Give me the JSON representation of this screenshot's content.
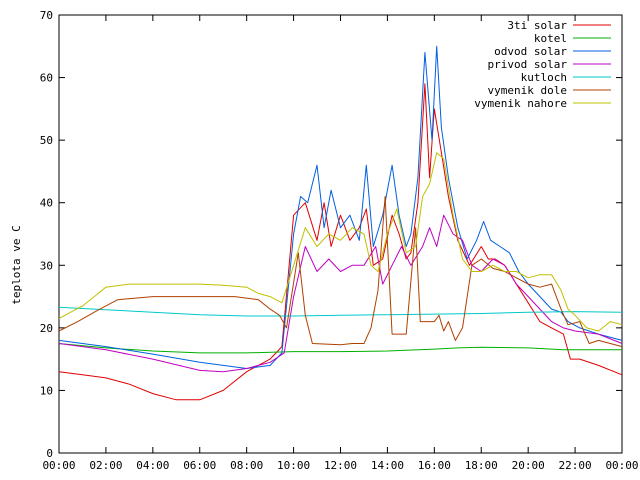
{
  "chart_data": {
    "type": "line",
    "title": "",
    "xlabel": "",
    "ylabel": "teplota ve C",
    "xlim": [
      0,
      24
    ],
    "ylim": [
      0,
      70
    ],
    "grid": false,
    "legend_position": "top-right",
    "x_ticks": [
      {
        "v": 0,
        "label": "00:00"
      },
      {
        "v": 2,
        "label": "02:00"
      },
      {
        "v": 4,
        "label": "04:00"
      },
      {
        "v": 6,
        "label": "06:00"
      },
      {
        "v": 8,
        "label": "08:00"
      },
      {
        "v": 10,
        "label": "10:00"
      },
      {
        "v": 12,
        "label": "12:00"
      },
      {
        "v": 14,
        "label": "14:00"
      },
      {
        "v": 16,
        "label": "16:00"
      },
      {
        "v": 18,
        "label": "18:00"
      },
      {
        "v": 20,
        "label": "20:00"
      },
      {
        "v": 22,
        "label": "22:00"
      },
      {
        "v": 24,
        "label": "00:00"
      }
    ],
    "y_ticks": [
      {
        "v": 0,
        "label": "0"
      },
      {
        "v": 10,
        "label": "10"
      },
      {
        "v": 20,
        "label": "20"
      },
      {
        "v": 30,
        "label": "30"
      },
      {
        "v": 40,
        "label": "40"
      },
      {
        "v": 50,
        "label": "50"
      },
      {
        "v": 60,
        "label": "60"
      },
      {
        "v": 70,
        "label": "70"
      }
    ],
    "series": [
      {
        "name": "3ti solar",
        "color": "#e00000",
        "points": [
          [
            0,
            13
          ],
          [
            1,
            12.5
          ],
          [
            2,
            12
          ],
          [
            3,
            11
          ],
          [
            4,
            9.5
          ],
          [
            5,
            8.5
          ],
          [
            6,
            8.5
          ],
          [
            7,
            10
          ],
          [
            8,
            13
          ],
          [
            9,
            15
          ],
          [
            9.5,
            17
          ],
          [
            10,
            38
          ],
          [
            10.5,
            40
          ],
          [
            11,
            34
          ],
          [
            11.3,
            40
          ],
          [
            11.6,
            33
          ],
          [
            12,
            38
          ],
          [
            12.4,
            34
          ],
          [
            12.8,
            36
          ],
          [
            13.1,
            39
          ],
          [
            13.4,
            30
          ],
          [
            13.8,
            31
          ],
          [
            14.2,
            38
          ],
          [
            14.5,
            35
          ],
          [
            14.8,
            31
          ],
          [
            15,
            32
          ],
          [
            15.3,
            40
          ],
          [
            15.6,
            59
          ],
          [
            15.8,
            44
          ],
          [
            16,
            55
          ],
          [
            16.3,
            48
          ],
          [
            16.6,
            41
          ],
          [
            17,
            34
          ],
          [
            17.5,
            30
          ],
          [
            18,
            33
          ],
          [
            18.3,
            31
          ],
          [
            18.6,
            31
          ],
          [
            19,
            30
          ],
          [
            19.5,
            27
          ],
          [
            20,
            24
          ],
          [
            20.5,
            21
          ],
          [
            21,
            20
          ],
          [
            21.5,
            19
          ],
          [
            21.8,
            15
          ],
          [
            22.2,
            15
          ],
          [
            23,
            14
          ],
          [
            24,
            12.5
          ]
        ]
      },
      {
        "name": "kotel",
        "color": "#00b000",
        "points": [
          [
            0,
            17.5
          ],
          [
            2,
            16.8
          ],
          [
            4,
            16.3
          ],
          [
            6,
            16
          ],
          [
            8,
            16
          ],
          [
            10,
            16.2
          ],
          [
            12,
            16.2
          ],
          [
            14,
            16.3
          ],
          [
            16,
            16.6
          ],
          [
            17,
            16.8
          ],
          [
            18,
            16.9
          ],
          [
            20,
            16.8
          ],
          [
            21.5,
            16.5
          ],
          [
            24,
            16.5
          ]
        ]
      },
      {
        "name": "odvod solar",
        "color": "#0060e0",
        "points": [
          [
            0,
            18
          ],
          [
            2,
            17
          ],
          [
            4,
            15.8
          ],
          [
            6,
            14.5
          ],
          [
            8,
            13.5
          ],
          [
            9,
            14
          ],
          [
            9.5,
            16
          ],
          [
            10,
            35
          ],
          [
            10.3,
            41
          ],
          [
            10.6,
            40
          ],
          [
            11,
            46
          ],
          [
            11.3,
            36
          ],
          [
            11.6,
            42
          ],
          [
            12,
            36
          ],
          [
            12.4,
            38
          ],
          [
            12.8,
            34
          ],
          [
            13.1,
            46
          ],
          [
            13.4,
            33
          ],
          [
            13.8,
            38
          ],
          [
            14.2,
            46
          ],
          [
            14.5,
            38
          ],
          [
            14.8,
            33
          ],
          [
            15,
            35
          ],
          [
            15.3,
            44
          ],
          [
            15.6,
            64
          ],
          [
            15.9,
            50
          ],
          [
            16.1,
            65
          ],
          [
            16.3,
            52
          ],
          [
            16.6,
            44
          ],
          [
            17,
            36
          ],
          [
            17.4,
            31
          ],
          [
            17.8,
            34
          ],
          [
            18.1,
            37
          ],
          [
            18.4,
            34
          ],
          [
            18.8,
            33
          ],
          [
            19.2,
            32
          ],
          [
            19.6,
            29
          ],
          [
            20,
            27
          ],
          [
            20.5,
            25
          ],
          [
            21,
            23
          ],
          [
            21.4,
            22.5
          ],
          [
            21.7,
            21
          ],
          [
            22.2,
            20
          ],
          [
            23,
            19
          ],
          [
            24,
            18
          ]
        ]
      },
      {
        "name": "privod solar",
        "color": "#c000c0",
        "points": [
          [
            0,
            17.5
          ],
          [
            2,
            16.5
          ],
          [
            4,
            15
          ],
          [
            6,
            13.2
          ],
          [
            7,
            13
          ],
          [
            8,
            13.5
          ],
          [
            9,
            14.5
          ],
          [
            9.6,
            16
          ],
          [
            10,
            25
          ],
          [
            10.5,
            33
          ],
          [
            11,
            29
          ],
          [
            11.5,
            31
          ],
          [
            12,
            29
          ],
          [
            12.5,
            30
          ],
          [
            13,
            30
          ],
          [
            13.5,
            33
          ],
          [
            13.8,
            27
          ],
          [
            14.2,
            30
          ],
          [
            14.6,
            33
          ],
          [
            15,
            30
          ],
          [
            15.5,
            33
          ],
          [
            15.8,
            36
          ],
          [
            16.1,
            33
          ],
          [
            16.4,
            38
          ],
          [
            16.8,
            35
          ],
          [
            17.2,
            34
          ],
          [
            17.6,
            30
          ],
          [
            18,
            29
          ],
          [
            18.5,
            31
          ],
          [
            19,
            30
          ],
          [
            19.5,
            27
          ],
          [
            20,
            25
          ],
          [
            20.5,
            23
          ],
          [
            21,
            21
          ],
          [
            21.5,
            20
          ],
          [
            22,
            19.5
          ],
          [
            23,
            19
          ],
          [
            24,
            17.5
          ]
        ]
      },
      {
        "name": "kutloch",
        "color": "#00c8c8",
        "points": [
          [
            0,
            23.3
          ],
          [
            2,
            22.9
          ],
          [
            4,
            22.5
          ],
          [
            6,
            22.1
          ],
          [
            8,
            21.9
          ],
          [
            10,
            21.9
          ],
          [
            12,
            22
          ],
          [
            14,
            22.1
          ],
          [
            16,
            22.2
          ],
          [
            18,
            22.3
          ],
          [
            20,
            22.5
          ],
          [
            22,
            22.6
          ],
          [
            24,
            22.5
          ]
        ]
      },
      {
        "name": "vymenik dole",
        "color": "#b04000",
        "points": [
          [
            0,
            19.5
          ],
          [
            0.8,
            21
          ],
          [
            1.5,
            22.5
          ],
          [
            2.5,
            24.5
          ],
          [
            4,
            25
          ],
          [
            6,
            25
          ],
          [
            7.5,
            25
          ],
          [
            8.5,
            24.5
          ],
          [
            9,
            23
          ],
          [
            9.4,
            22
          ],
          [
            9.7,
            20
          ],
          [
            10.2,
            32
          ],
          [
            10.5,
            22
          ],
          [
            10.8,
            17.5
          ],
          [
            12,
            17.3
          ],
          [
            12.5,
            17.5
          ],
          [
            13,
            17.5
          ],
          [
            13.3,
            20
          ],
          [
            13.6,
            26
          ],
          [
            13.9,
            41
          ],
          [
            14.2,
            19
          ],
          [
            14.5,
            19
          ],
          [
            14.8,
            19
          ],
          [
            15.2,
            36
          ],
          [
            15.4,
            21
          ],
          [
            15.7,
            21
          ],
          [
            16,
            21
          ],
          [
            16.2,
            22
          ],
          [
            16.4,
            19.5
          ],
          [
            16.6,
            21
          ],
          [
            16.9,
            18
          ],
          [
            17.2,
            20
          ],
          [
            17.6,
            30
          ],
          [
            18,
            31
          ],
          [
            18.5,
            29.5
          ],
          [
            19,
            29
          ],
          [
            19.5,
            28
          ],
          [
            20,
            27
          ],
          [
            20.5,
            26.5
          ],
          [
            21,
            27
          ],
          [
            21.4,
            23
          ],
          [
            21.7,
            20.5
          ],
          [
            22.2,
            21
          ],
          [
            22.6,
            17.5
          ],
          [
            23,
            18
          ],
          [
            23.5,
            17.5
          ],
          [
            24,
            17
          ]
        ]
      },
      {
        "name": "vymenik nahore",
        "color": "#c0c000",
        "points": [
          [
            0,
            21.5
          ],
          [
            0.5,
            22.5
          ],
          [
            1,
            23.5
          ],
          [
            1.5,
            25
          ],
          [
            2,
            26.5
          ],
          [
            3,
            27
          ],
          [
            4,
            27
          ],
          [
            6,
            27
          ],
          [
            7,
            26.8
          ],
          [
            8,
            26.5
          ],
          [
            8.5,
            25.5
          ],
          [
            9,
            25
          ],
          [
            9.5,
            24
          ],
          [
            10,
            30
          ],
          [
            10.5,
            36
          ],
          [
            11,
            33
          ],
          [
            11.5,
            35
          ],
          [
            12,
            34
          ],
          [
            12.5,
            36
          ],
          [
            13,
            35
          ],
          [
            13.3,
            30
          ],
          [
            13.6,
            29
          ],
          [
            14,
            35
          ],
          [
            14.4,
            39
          ],
          [
            14.8,
            32
          ],
          [
            15.2,
            33
          ],
          [
            15.5,
            41
          ],
          [
            15.8,
            43
          ],
          [
            16.1,
            48
          ],
          [
            16.4,
            47
          ],
          [
            16.8,
            38
          ],
          [
            17.2,
            31
          ],
          [
            17.6,
            29
          ],
          [
            18,
            29
          ],
          [
            18.5,
            30
          ],
          [
            19,
            29
          ],
          [
            19.5,
            29
          ],
          [
            20,
            28
          ],
          [
            20.5,
            28.5
          ],
          [
            21,
            28.5
          ],
          [
            21.4,
            26
          ],
          [
            21.7,
            23
          ],
          [
            22,
            22
          ],
          [
            22.5,
            20
          ],
          [
            23,
            19.5
          ],
          [
            23.5,
            21
          ],
          [
            24,
            20.5
          ]
        ]
      }
    ]
  }
}
